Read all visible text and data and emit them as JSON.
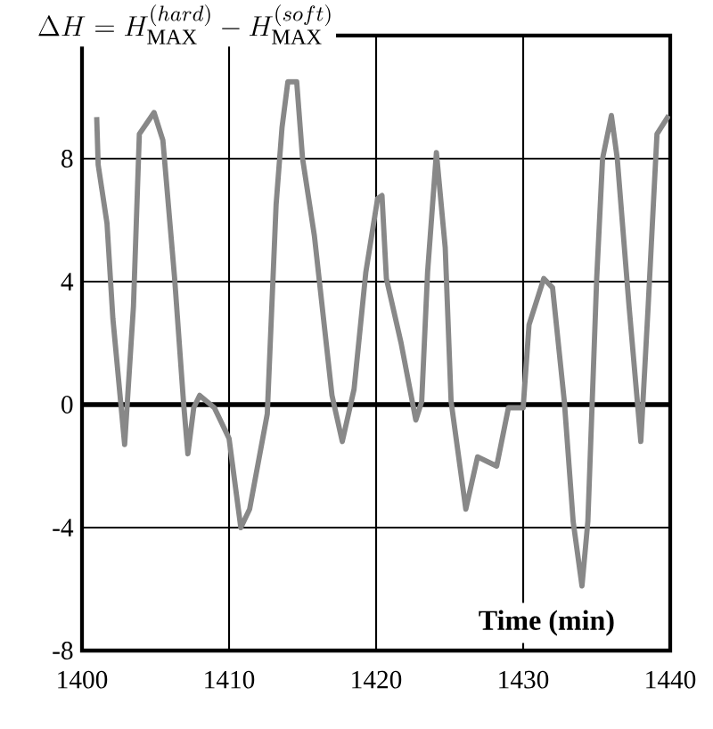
{
  "chart_data": {
    "type": "line",
    "title": "\\Delta H = H_{\\mathrm{MAX}}^{(hard)} - H_{\\mathrm{MAX}}^{(soft)}",
    "xlabel": "Time (min)",
    "x": [
      1401.0,
      1401.1,
      1401.7,
      1402.1,
      1402.9,
      1403.5,
      1403.9,
      1404.9,
      1405.5,
      1406.3,
      1406.9,
      1407.2,
      1407.6,
      1408.0,
      1409.0,
      1410.0,
      1410.8,
      1411.4,
      1412.6,
      1413.2,
      1413.6,
      1414.0,
      1414.6,
      1415.0,
      1415.8,
      1417.0,
      1417.7,
      1418.5,
      1419.3,
      1420.1,
      1420.4,
      1420.7,
      1421.7,
      1422.7,
      1423.1,
      1423.5,
      1424.1,
      1424.7,
      1425.1,
      1426.1,
      1426.9,
      1428.2,
      1429.0,
      1430.0,
      1430.4,
      1431.4,
      1432.0,
      1432.8,
      1433.4,
      1434.0,
      1434.4,
      1435.0,
      1435.4,
      1436.0,
      1436.4,
      1437.2,
      1438.0,
      1438.5,
      1439.1,
      1439.9
    ],
    "series": [
      {
        "color": "#888888",
        "values": [
          9.35,
          7.8,
          5.9,
          2.8,
          -1.3,
          3.2,
          8.8,
          9.5,
          8.6,
          4.1,
          0.1,
          -1.6,
          -0.1,
          0.3,
          -0.1,
          -1.1,
          -4.0,
          -3.4,
          -0.3,
          6.5,
          9.0,
          10.5,
          10.5,
          8.0,
          5.5,
          0.3,
          -1.2,
          0.5,
          4.3,
          6.7,
          6.8,
          4.1,
          2.0,
          -0.5,
          0.1,
          4.3,
          8.2,
          5.1,
          0.1,
          -3.4,
          -1.7,
          -2.0,
          -0.1,
          -0.1,
          2.6,
          4.1,
          3.8,
          0.1,
          -3.8,
          -5.9,
          -3.8,
          4.1,
          8.0,
          9.4,
          8.0,
          3.2,
          -1.2,
          3.2,
          8.8,
          9.4
        ]
      }
    ],
    "xlim": [
      1400,
      1440
    ],
    "ylim": [
      -8,
      12
    ],
    "xticks": [
      1400,
      1410,
      1420,
      1430,
      1440
    ],
    "yticks": [
      -8,
      -4,
      0,
      4,
      8
    ],
    "grid": true,
    "marker": "none",
    "line_style": "solid",
    "ref_lines": [
      {
        "axis": "y",
        "value": 0,
        "color": "#000000"
      }
    ]
  }
}
